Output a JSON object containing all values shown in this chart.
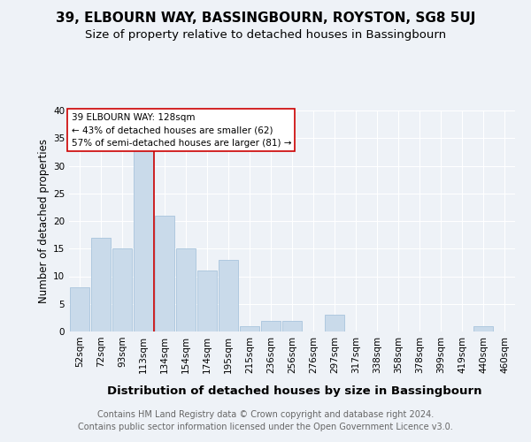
{
  "title1": "39, ELBOURN WAY, BASSINGBOURN, ROYSTON, SG8 5UJ",
  "title2": "Size of property relative to detached houses in Bassingbourn",
  "xlabel": "Distribution of detached houses by size in Bassingbourn",
  "ylabel": "Number of detached properties",
  "categories": [
    "52sqm",
    "72sqm",
    "93sqm",
    "113sqm",
    "134sqm",
    "154sqm",
    "174sqm",
    "195sqm",
    "215sqm",
    "236sqm",
    "256sqm",
    "276sqm",
    "297sqm",
    "317sqm",
    "338sqm",
    "358sqm",
    "378sqm",
    "399sqm",
    "419sqm",
    "440sqm",
    "460sqm"
  ],
  "values": [
    8,
    17,
    15,
    33,
    21,
    15,
    11,
    13,
    1,
    2,
    2,
    0,
    3,
    0,
    0,
    0,
    0,
    0,
    0,
    1,
    0
  ],
  "bar_color": "#c9daea",
  "bar_edge_color": "#a8c4dc",
  "property_line_color": "#cc0000",
  "annotation_text": "39 ELBOURN WAY: 128sqm\n← 43% of detached houses are smaller (62)\n57% of semi-detached houses are larger (81) →",
  "annotation_box_color": "#ffffff",
  "annotation_box_edge_color": "#cc0000",
  "ylim": [
    0,
    40
  ],
  "yticks": [
    0,
    5,
    10,
    15,
    20,
    25,
    30,
    35,
    40
  ],
  "footer": "Contains HM Land Registry data © Crown copyright and database right 2024.\nContains public sector information licensed under the Open Government Licence v3.0.",
  "background_color": "#eef2f7",
  "grid_color": "#ffffff",
  "title1_fontsize": 11,
  "title2_fontsize": 9.5,
  "xlabel_fontsize": 9.5,
  "ylabel_fontsize": 8.5,
  "tick_fontsize": 7.5,
  "annotation_fontsize": 7.5,
  "footer_fontsize": 7
}
